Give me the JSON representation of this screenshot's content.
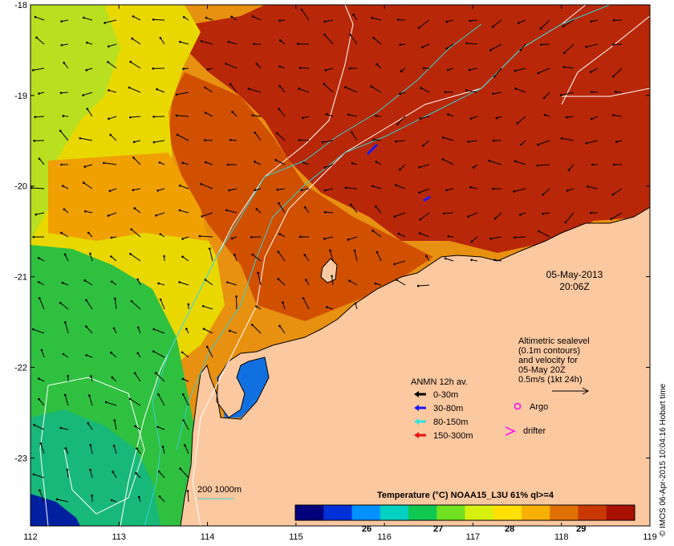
{
  "map": {
    "lon_ticks": [
      "112",
      "113",
      "114",
      "115",
      "116",
      "117",
      "118",
      "119"
    ],
    "lat_ticks": [
      "-18",
      "-19",
      "-20",
      "-21",
      "-22",
      "-23"
    ],
    "lon_range": [
      112,
      119
    ],
    "lat_range": [
      -23.75,
      -18
    ]
  },
  "timestamp": {
    "date": "05-May-2013",
    "time": "20:06Z"
  },
  "altimetry_note": {
    "lines": [
      "Altimetric sealevel",
      "(0.1m contours)",
      "and velocity for",
      "05-May 20Z"
    ],
    "scale_label": "0.5m/s (1kt 24h)"
  },
  "anmn_legend": {
    "title": "ANMN 12h av.",
    "items": [
      {
        "label": "0-30m",
        "color": "#000000"
      },
      {
        "label": "30-80m",
        "color": "#1a1aff"
      },
      {
        "label": "80-150m",
        "color": "#33e0e0"
      },
      {
        "label": "150-300m",
        "color": "#ee1111"
      }
    ]
  },
  "markers_legend": {
    "argo_label": "Argo",
    "argo_color": "#ff00ff",
    "drifter_label": "drifter",
    "drifter_color": "#ff00ff"
  },
  "colorbar": {
    "title": "Temperature (°C) NOAA15_L3U 61% ql>=4",
    "tick_labels": [
      "26",
      "27",
      "28",
      "29"
    ],
    "tick_values": [
      26,
      27,
      28,
      29
    ],
    "range": [
      25.0,
      29.75
    ],
    "colors": [
      "#00007a",
      "#0030d8",
      "#0090ff",
      "#00d0c0",
      "#10c850",
      "#70e020",
      "#d8f010",
      "#ffe000",
      "#f8b000",
      "#e07000",
      "#c83800",
      "#a81000"
    ]
  },
  "depth_legend": {
    "label": "200  1000m",
    "color": "#33d0d0"
  },
  "credit": "© IMOS 06-Apr-2015 10:04:16 Hobart time"
}
